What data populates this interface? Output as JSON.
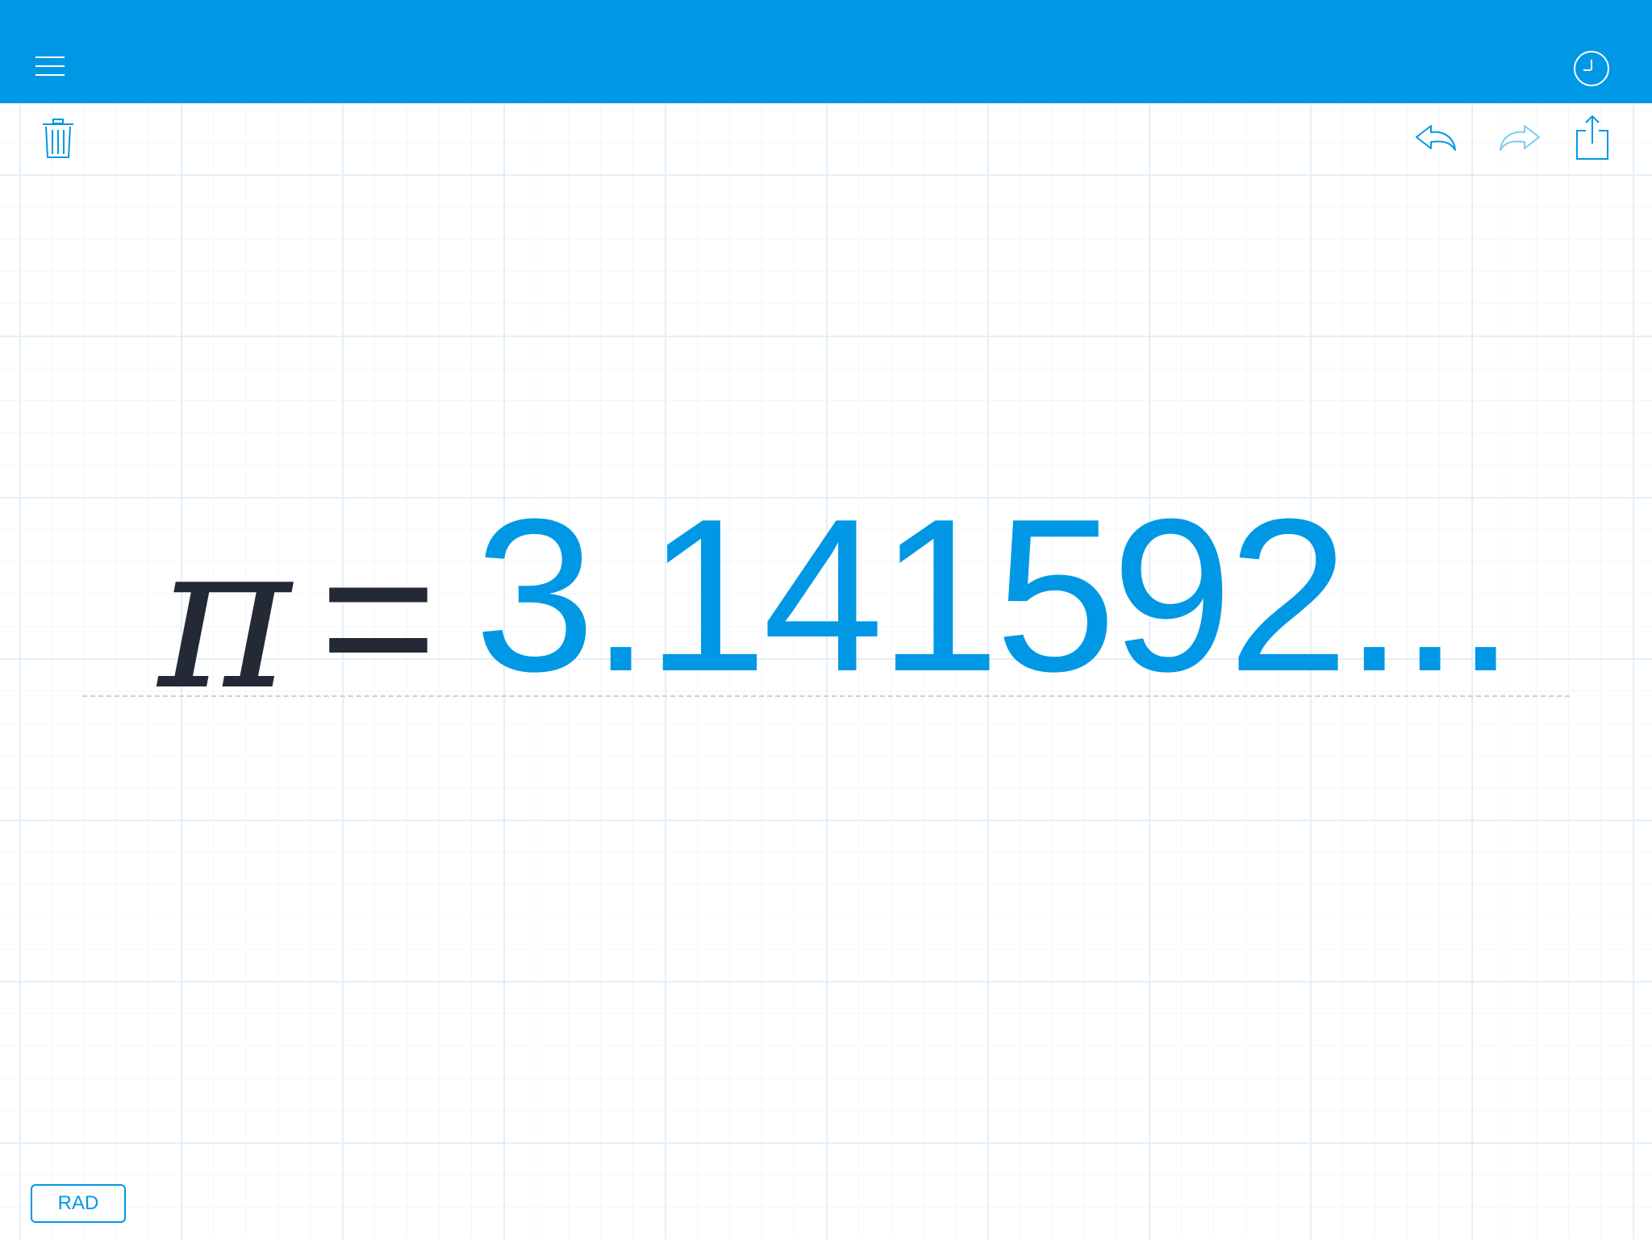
{
  "topbar": {
    "menu_icon": "hamburger-menu-icon",
    "history_icon": "clock-history-icon",
    "color": "#0098e4"
  },
  "toolbar": {
    "delete_icon": "trash-icon",
    "undo_icon": "undo-arrow-icon",
    "redo_icon": "redo-arrow-icon",
    "share_icon": "share-icon"
  },
  "expression": {
    "symbol": "π",
    "operator": "=",
    "result": "3.141592..."
  },
  "mode": {
    "label": "RAD"
  },
  "colors": {
    "accent": "#0098e4",
    "expression_text": "#242a35",
    "grid": "#e3eff8"
  }
}
